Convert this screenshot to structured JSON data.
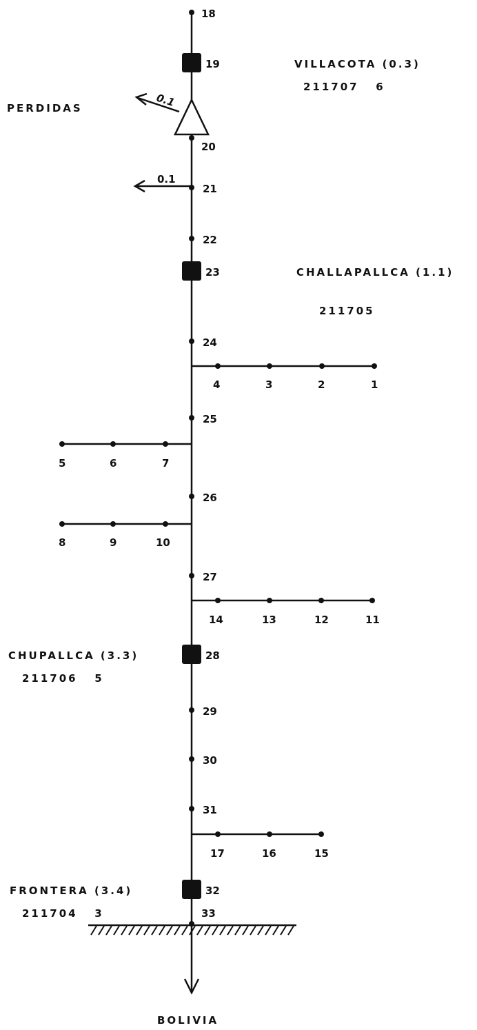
{
  "main_nodes": [
    "18",
    "19",
    "20",
    "21",
    "22",
    "23",
    "24",
    "25",
    "26",
    "27",
    "28",
    "29",
    "30",
    "31",
    "32",
    "33"
  ],
  "stations": [
    {
      "node": "19",
      "name": "VILLACOTA (0.3)",
      "code": "211707   6"
    },
    {
      "node": "23",
      "name": "CHALLAPALLCA (1.1)",
      "code": "211705"
    },
    {
      "node": "28",
      "name": "CHUPALLCA (3.3)",
      "code": "211706   5"
    },
    {
      "node": "32",
      "name": "FRONTERA (3.4)",
      "code": "211704   3"
    }
  ],
  "branches": [
    {
      "from": "24",
      "side": "right",
      "nodes": [
        "4",
        "3",
        "2",
        "1"
      ]
    },
    {
      "from": "25",
      "side": "left",
      "nodes": [
        "7",
        "6",
        "5"
      ]
    },
    {
      "from": "26",
      "side": "left",
      "nodes": [
        "10",
        "9",
        "8"
      ]
    },
    {
      "from": "27",
      "side": "right",
      "nodes": [
        "14",
        "13",
        "12",
        "11"
      ]
    },
    {
      "from": "31",
      "side": "right",
      "nodes": [
        "17",
        "16",
        "15"
      ]
    }
  ],
  "losses": [
    {
      "label": "PERDIDAS",
      "value": "0.1",
      "at_node": "20"
    },
    {
      "value": "0.1",
      "at_node": "21"
    }
  ],
  "outlet": {
    "label": "BOLIVIA"
  }
}
